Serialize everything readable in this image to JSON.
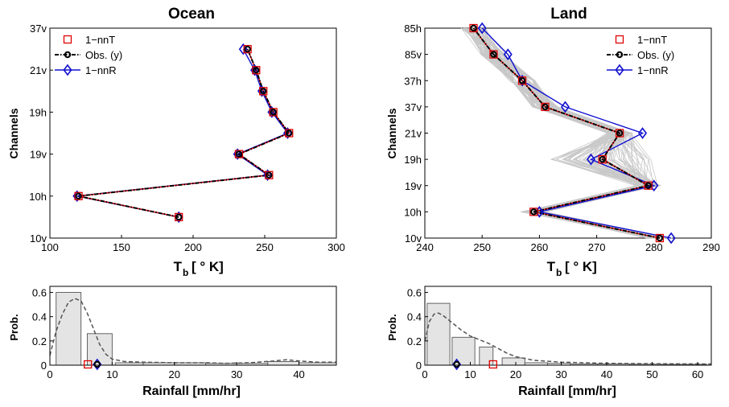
{
  "chart_data": [
    {
      "id": "ocean_tb",
      "type": "line",
      "title": "Ocean",
      "xlabel_main": "T",
      "xlabel_sub": "b",
      "xlabel_unit": "[ ° K]",
      "ylabel": "Channels",
      "xlim": [
        100,
        300
      ],
      "xticks": [
        "100",
        "150",
        "200",
        "250",
        "300"
      ],
      "yticks": [
        "10v",
        "10h",
        "19v",
        "19h",
        "21v",
        "37v"
      ],
      "ylim": [
        0,
        10
      ],
      "legend": {
        "position": "top-left",
        "entries": [
          "1−nnT",
          "Obs. (y)",
          "1−nnR"
        ]
      },
      "series": [
        {
          "name": "1−nnT",
          "color": "#e00000",
          "marker": "square",
          "points": [
            [
              190,
              1
            ],
            [
              120,
              2
            ],
            [
              253,
              3
            ],
            [
              232,
              4
            ],
            [
              267,
              5
            ],
            [
              256,
              6
            ],
            [
              249,
              7
            ],
            [
              244,
              8
            ],
            [
              238,
              9
            ]
          ]
        },
        {
          "name": "Obs. (y)",
          "color": "#000000",
          "marker": "circle",
          "style": "dashdot",
          "points": [
            [
              190,
              1
            ],
            [
              120,
              2
            ],
            [
              253,
              3
            ],
            [
              232,
              4
            ],
            [
              267,
              5
            ],
            [
              256,
              6
            ],
            [
              249,
              7
            ],
            [
              244,
              8
            ],
            [
              238,
              9
            ]
          ]
        },
        {
          "name": "1−nnR",
          "color": "#1010d0",
          "marker": "diamond",
          "points": [
            [
              190,
              1
            ],
            [
              119,
              2
            ],
            [
              252,
              3
            ],
            [
              231,
              4
            ],
            [
              266,
              5
            ],
            [
              255,
              6
            ],
            [
              248,
              7
            ],
            [
              243,
              8
            ],
            [
              235,
              9
            ]
          ]
        }
      ]
    },
    {
      "id": "land_tb",
      "type": "line",
      "title": "Land",
      "xlabel_main": "T",
      "xlabel_sub": "b",
      "xlabel_unit": "[ ° K]",
      "ylabel": "Channels",
      "xlim": [
        240,
        290
      ],
      "xticks": [
        "240",
        "250",
        "260",
        "270",
        "280",
        "290"
      ],
      "yticks": [
        "10v",
        "10h",
        "19v",
        "19h",
        "21v",
        "37v",
        "37h",
        "85v",
        "85h"
      ],
      "ylim": [
        0,
        8
      ],
      "legend": {
        "position": "top-right",
        "entries": [
          "1−nnT",
          "Obs. (y)",
          "1−nnR"
        ]
      },
      "series": [
        {
          "name": "1−nnT",
          "color": "#e00000",
          "marker": "square",
          "points": [
            [
              281,
              0
            ],
            [
              259,
              1
            ],
            [
              279,
              2
            ],
            [
              271,
              3
            ],
            [
              274,
              4
            ],
            [
              261,
              5
            ],
            [
              257,
              6
            ],
            [
              252,
              7
            ],
            [
              248.5,
              8
            ]
          ]
        },
        {
          "name": "Obs. (y)",
          "color": "#000000",
          "marker": "circle",
          "style": "dashdot",
          "points": [
            [
              281,
              0
            ],
            [
              259,
              1
            ],
            [
              279,
              2
            ],
            [
              271,
              3
            ],
            [
              274,
              4
            ],
            [
              261,
              5
            ],
            [
              257,
              6
            ],
            [
              252,
              7
            ],
            [
              248.5,
              8
            ]
          ]
        },
        {
          "name": "1−nnR",
          "color": "#1010d0",
          "marker": "diamond",
          "points": [
            [
              283,
              0
            ],
            [
              260,
              1
            ],
            [
              280,
              2
            ],
            [
              269,
              3
            ],
            [
              278,
              4
            ],
            [
              264.5,
              5
            ],
            [
              257,
              6
            ],
            [
              254.5,
              7
            ],
            [
              250,
              8
            ]
          ]
        }
      ],
      "ensemble_color": "#c8c8c8"
    },
    {
      "id": "ocean_rain",
      "type": "bar",
      "xlabel": "Rainfall [mm/hr]",
      "ylabel": "Prob.",
      "xlim": [
        0,
        46
      ],
      "ylim": [
        0,
        0.65
      ],
      "xticks": [
        "0",
        "10",
        "20",
        "30",
        "40"
      ],
      "yticks": [
        "0",
        "0.2",
        "0.4",
        "0.6"
      ],
      "bins": [
        [
          1,
          5,
          0.6
        ],
        [
          6,
          10,
          0.26
        ],
        [
          10.5,
          15,
          0.02
        ],
        [
          15,
          20,
          0.02
        ],
        [
          20,
          25,
          0.02
        ],
        [
          25,
          30,
          0.015
        ],
        [
          30,
          35,
          0.015
        ],
        [
          35,
          40,
          0.03
        ],
        [
          40,
          46,
          0.02
        ]
      ],
      "density_curve": [
        [
          0,
          0.08
        ],
        [
          1,
          0.28
        ],
        [
          2,
          0.42
        ],
        [
          3,
          0.52
        ],
        [
          4,
          0.55
        ],
        [
          5,
          0.53
        ],
        [
          6,
          0.43
        ],
        [
          7,
          0.3
        ],
        [
          8,
          0.17
        ],
        [
          9,
          0.09
        ],
        [
          10,
          0.05
        ],
        [
          12,
          0.03
        ],
        [
          15,
          0.025
        ],
        [
          20,
          0.02
        ],
        [
          25,
          0.02
        ],
        [
          28,
          0.015
        ],
        [
          32,
          0.02
        ],
        [
          36,
          0.035
        ],
        [
          38,
          0.045
        ],
        [
          40,
          0.035
        ],
        [
          43,
          0.025
        ],
        [
          46,
          0.025
        ]
      ],
      "markers": [
        {
          "name": "1−nnT",
          "x": 6.1,
          "color": "#e00000",
          "shape": "square"
        },
        {
          "name": "Obs. (y)",
          "x": 7.6,
          "color": "#000000",
          "shape": "circle"
        },
        {
          "name": "1−nnR",
          "x": 7.6,
          "color": "#1010d0",
          "shape": "diamond"
        }
      ]
    },
    {
      "id": "land_rain",
      "type": "bar",
      "xlabel": "Rainfall [mm/hr]",
      "ylabel": "Prob.",
      "xlim": [
        0,
        63
      ],
      "ylim": [
        0,
        0.65
      ],
      "xticks": [
        "0",
        "10",
        "20",
        "30",
        "40",
        "50",
        "60"
      ],
      "yticks": [
        "0",
        "0.2",
        "0.4",
        "0.6"
      ],
      "bins": [
        [
          0.5,
          5.5,
          0.51
        ],
        [
          6,
          11,
          0.23
        ],
        [
          12,
          15,
          0.15
        ],
        [
          17,
          22,
          0.06
        ],
        [
          22,
          27,
          0.02
        ],
        [
          27,
          32,
          0.015
        ],
        [
          32,
          38,
          0.01
        ],
        [
          38,
          45,
          0.01
        ],
        [
          45,
          52,
          0.008
        ],
        [
          52,
          62,
          0.007
        ]
      ],
      "density_curve": [
        [
          0,
          0.2
        ],
        [
          1,
          0.36
        ],
        [
          2,
          0.42
        ],
        [
          3,
          0.43
        ],
        [
          4,
          0.41
        ],
        [
          6,
          0.35
        ],
        [
          8,
          0.29
        ],
        [
          10,
          0.24
        ],
        [
          12,
          0.21
        ],
        [
          14,
          0.18
        ],
        [
          16,
          0.14
        ],
        [
          18,
          0.1
        ],
        [
          20,
          0.07
        ],
        [
          24,
          0.04
        ],
        [
          30,
          0.025
        ],
        [
          40,
          0.015
        ],
        [
          50,
          0.012
        ],
        [
          63,
          0.01
        ]
      ],
      "markers": [
        {
          "name": "1−nnT",
          "x": 15,
          "color": "#e00000",
          "shape": "square"
        },
        {
          "name": "Obs. (y)",
          "x": 7,
          "color": "#000000",
          "shape": "circle"
        },
        {
          "name": "1−nnR",
          "x": 7,
          "color": "#1010d0",
          "shape": "diamond"
        }
      ]
    }
  ]
}
